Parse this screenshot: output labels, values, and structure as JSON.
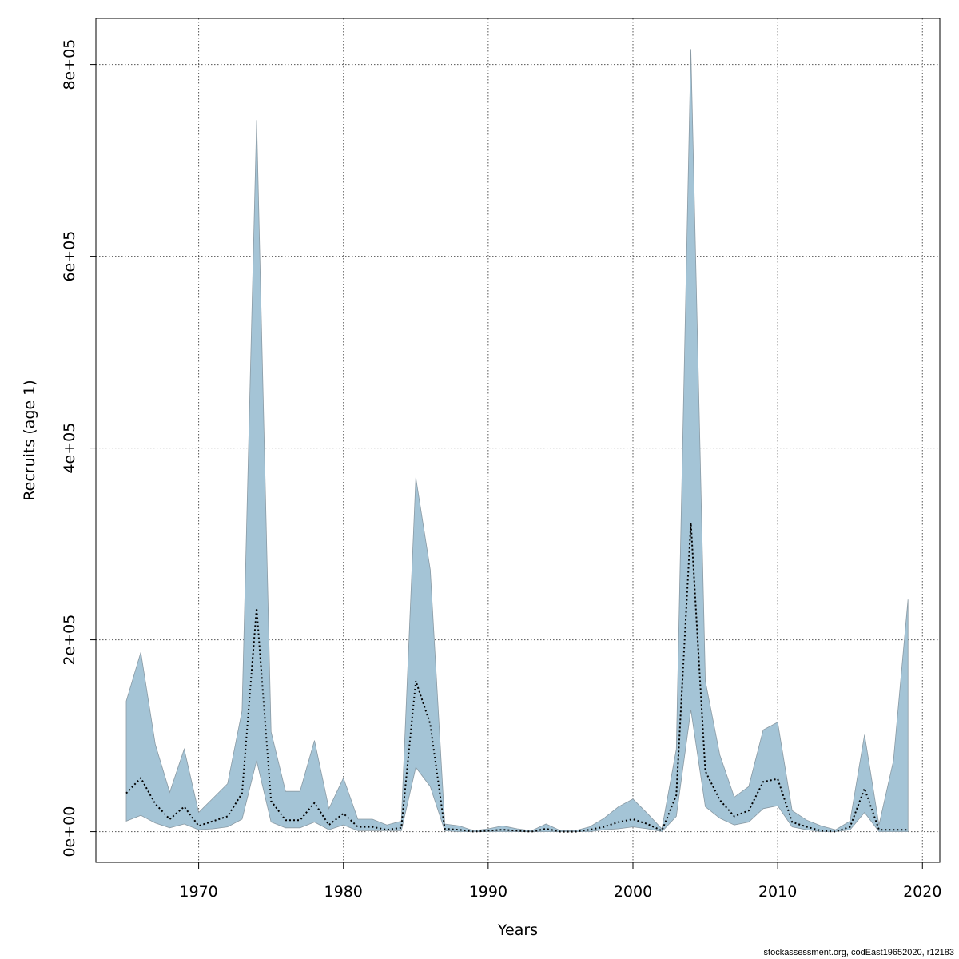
{
  "chart_data": {
    "type": "area",
    "title": "",
    "xlabel": "Years",
    "ylabel": "Recruits (age 1)",
    "xlim": [
      1962.9,
      2021.2
    ],
    "ylim": [
      -32000,
      848000
    ],
    "x_ticks": [
      {
        "value": 1970,
        "label": "1970"
      },
      {
        "value": 1980,
        "label": "1980"
      },
      {
        "value": 1990,
        "label": "1990"
      },
      {
        "value": 2000,
        "label": "2000"
      },
      {
        "value": 2010,
        "label": "2010"
      },
      {
        "value": 2020,
        "label": "2020"
      }
    ],
    "y_ticks": [
      {
        "value": 0,
        "label": "0e+00"
      },
      {
        "value": 200000,
        "label": "2e+05"
      },
      {
        "value": 400000,
        "label": "4e+05"
      },
      {
        "value": 600000,
        "label": "6e+05"
      },
      {
        "value": 800000,
        "label": "8e+05"
      }
    ],
    "grid": true,
    "colors": {
      "band": "#a4c4d6",
      "band_edge": "#8a9aa4",
      "estimate": "#000000",
      "grid": "#555555"
    },
    "x": [
      1965,
      1966,
      1967,
      1968,
      1969,
      1970,
      1971,
      1972,
      1973,
      1974,
      1975,
      1976,
      1977,
      1978,
      1979,
      1980,
      1981,
      1982,
      1983,
      1984,
      1985,
      1986,
      1987,
      1988,
      1989,
      1990,
      1991,
      1992,
      1993,
      1994,
      1995,
      1996,
      1997,
      1998,
      1999,
      2000,
      2001,
      2002,
      2003,
      2004,
      2005,
      2006,
      2007,
      2008,
      2009,
      2010,
      2011,
      2012,
      2013,
      2014,
      2015,
      2016,
      2017,
      2018,
      2019
    ],
    "series": [
      {
        "name": "Estimate",
        "style": "dotted",
        "values": [
          40000,
          56000,
          29000,
          13000,
          26000,
          6000,
          11000,
          16000,
          40000,
          233000,
          32000,
          12000,
          12000,
          30000,
          7000,
          19000,
          5000,
          5000,
          2000,
          4000,
          157000,
          112000,
          3000,
          2000,
          0,
          1000,
          2000,
          1000,
          0,
          3000,
          0,
          0,
          2000,
          5000,
          10000,
          13000,
          8000,
          1000,
          38000,
          322000,
          63000,
          33000,
          16000,
          22000,
          52000,
          55000,
          10000,
          5000,
          1000,
          0,
          5000,
          45000,
          2000,
          2000,
          2000
        ]
      },
      {
        "name": "Upper",
        "style": "band-upper",
        "values": [
          136000,
          187000,
          91000,
          41000,
          86000,
          20000,
          35000,
          50000,
          126000,
          742000,
          104000,
          42000,
          42000,
          95000,
          24000,
          56000,
          13000,
          13000,
          7000,
          11000,
          369000,
          273000,
          8000,
          6000,
          1000,
          3000,
          6000,
          3000,
          1000,
          8000,
          1000,
          1000,
          5000,
          14000,
          26000,
          34000,
          19000,
          3000,
          86000,
          816000,
          157000,
          80000,
          36000,
          47000,
          106000,
          114000,
          22000,
          12000,
          6000,
          2000,
          11000,
          101000,
          7000,
          74000,
          242000
        ]
      },
      {
        "name": "Lower",
        "style": "band-lower",
        "values": [
          11000,
          17000,
          9000,
          4000,
          8000,
          2000,
          3000,
          5000,
          13000,
          74000,
          10000,
          4000,
          4000,
          10000,
          2000,
          7000,
          1000,
          1000,
          1000,
          1000,
          67000,
          47000,
          1000,
          0,
          0,
          0,
          0,
          0,
          0,
          0,
          0,
          0,
          0,
          2000,
          3000,
          5000,
          3000,
          0,
          16000,
          127000,
          26000,
          14000,
          7000,
          10000,
          24000,
          27000,
          5000,
          2000,
          0,
          0,
          2000,
          20000,
          0,
          0,
          0
        ]
      }
    ]
  },
  "footer": "stockassessment.org, codEast19652020, r12183"
}
